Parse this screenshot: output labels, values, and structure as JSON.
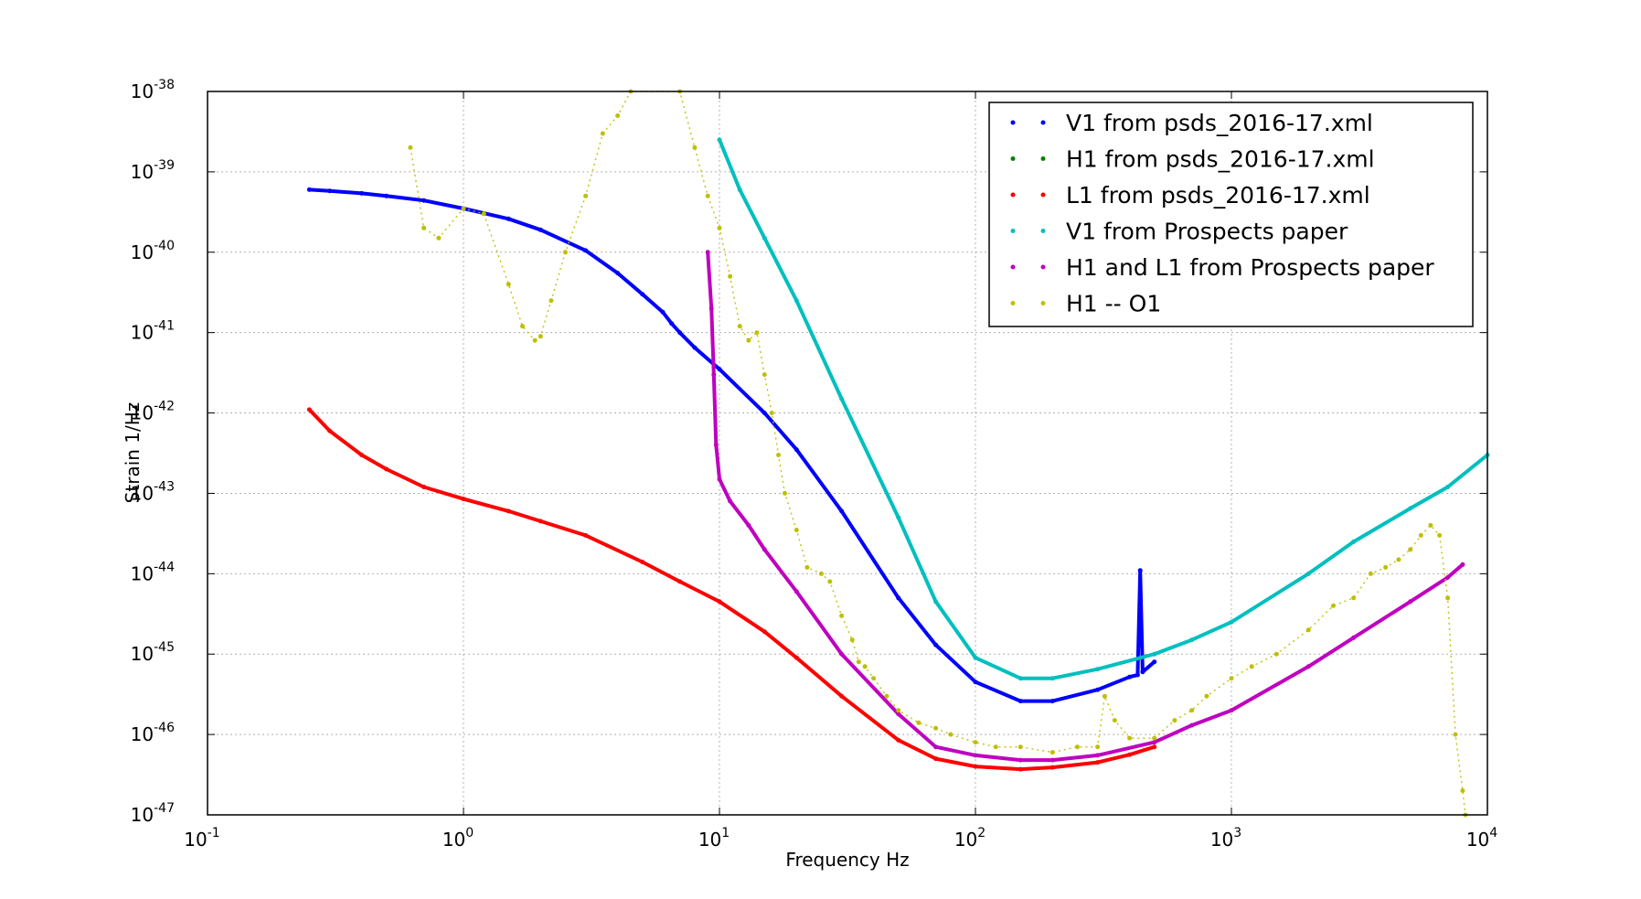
{
  "chart_data": {
    "type": "scatter",
    "title": "",
    "xlabel": "Frequency Hz",
    "ylabel": "Strain 1/Hz",
    "xscale": "log",
    "yscale": "log",
    "xlim": [
      0.1,
      10000
    ],
    "ylim": [
      1e-47,
      1e-38
    ],
    "grid": true,
    "legend_position": "top-right",
    "x_ticks": [
      {
        "value": 0.1,
        "base": "10",
        "exp": "-1"
      },
      {
        "value": 1,
        "base": "10",
        "exp": "0"
      },
      {
        "value": 10,
        "base": "10",
        "exp": "1"
      },
      {
        "value": 100,
        "base": "10",
        "exp": "2"
      },
      {
        "value": 1000,
        "base": "10",
        "exp": "3"
      },
      {
        "value": 10000,
        "base": "10",
        "exp": "4"
      }
    ],
    "y_ticks": [
      {
        "value": 1e-38,
        "base": "10",
        "exp": "-38"
      },
      {
        "value": 1e-39,
        "base": "10",
        "exp": "-39"
      },
      {
        "value": 1e-40,
        "base": "10",
        "exp": "-40"
      },
      {
        "value": 1e-41,
        "base": "10",
        "exp": "-41"
      },
      {
        "value": 1e-42,
        "base": "10",
        "exp": "-42"
      },
      {
        "value": 1e-43,
        "base": "10",
        "exp": "-43"
      },
      {
        "value": 1e-44,
        "base": "10",
        "exp": "-44"
      },
      {
        "value": 1e-45,
        "base": "10",
        "exp": "-45"
      },
      {
        "value": 1e-46,
        "base": "10",
        "exp": "-46"
      },
      {
        "value": 1e-47,
        "base": "10",
        "exp": "-47"
      }
    ],
    "series": [
      {
        "name": "V1 from psds_2016-17.xml",
        "color": "#0000ff",
        "x": [
          0.25,
          0.3,
          0.4,
          0.5,
          0.7,
          1,
          1.5,
          2,
          3,
          4,
          5,
          6,
          6.5,
          7,
          8,
          10,
          15,
          20,
          30,
          50,
          70,
          100,
          150,
          200,
          300,
          400,
          430,
          440,
          450,
          500
        ],
        "y": [
          6e-40,
          5.8e-40,
          5.4e-40,
          5e-40,
          4.4e-40,
          3.5e-40,
          2.6e-40,
          1.9e-40,
          1.05e-40,
          5.5e-41,
          3e-41,
          1.8e-41,
          1.3e-41,
          1e-41,
          6.5e-42,
          3.5e-42,
          1e-42,
          3.5e-43,
          6e-44,
          5e-45,
          1.3e-45,
          4.5e-46,
          2.6e-46,
          2.6e-46,
          3.6e-46,
          5.2e-46,
          5.5e-46,
          1.1e-44,
          6e-46,
          8e-46
        ]
      },
      {
        "name": "H1 from psds_2016-17.xml",
        "color": "#008000",
        "x": [],
        "y": []
      },
      {
        "name": "L1 from psds_2016-17.xml",
        "color": "#ff0000",
        "x": [
          0.25,
          0.3,
          0.4,
          0.5,
          0.7,
          1,
          1.5,
          2,
          3,
          5,
          7,
          10,
          15,
          20,
          30,
          50,
          70,
          100,
          150,
          200,
          300,
          400,
          500
        ],
        "y": [
          1.1e-42,
          6e-43,
          3e-43,
          2e-43,
          1.2e-43,
          8.5e-44,
          6e-44,
          4.5e-44,
          3e-44,
          1.4e-44,
          8e-45,
          4.5e-45,
          1.9e-45,
          9e-46,
          3e-46,
          8.5e-47,
          5e-47,
          4e-47,
          3.7e-47,
          3.9e-47,
          4.5e-47,
          5.6e-47,
          7e-47
        ]
      },
      {
        "name": "V1 from Prospects paper",
        "color": "#00bfbf",
        "x": [
          10,
          12,
          15,
          20,
          30,
          50,
          70,
          100,
          150,
          200,
          300,
          500,
          700,
          1000,
          2000,
          3000,
          5000,
          7000,
          10000
        ],
        "y": [
          2.5e-39,
          6e-40,
          1.5e-40,
          2.5e-41,
          1.5e-42,
          5e-44,
          4.5e-45,
          9e-46,
          5e-46,
          5e-46,
          6.5e-46,
          1e-45,
          1.5e-45,
          2.5e-45,
          1e-44,
          2.5e-44,
          6.5e-44,
          1.2e-43,
          3e-43
        ]
      },
      {
        "name": "H1 and L1 from Prospects paper",
        "color": "#bf00bf",
        "x": [
          9,
          9.3,
          9.5,
          9.7,
          10,
          11,
          13,
          15,
          20,
          30,
          50,
          70,
          100,
          150,
          200,
          300,
          500,
          700,
          1000,
          2000,
          3000,
          5000,
          7000,
          8000
        ],
        "y": [
          1e-40,
          2e-41,
          3e-42,
          4e-43,
          1.5e-43,
          8e-44,
          4e-44,
          2e-44,
          6e-45,
          1e-45,
          1.8e-46,
          7e-47,
          5.5e-47,
          4.8e-47,
          4.8e-47,
          5.5e-47,
          8e-47,
          1.3e-46,
          2e-46,
          7e-46,
          1.6e-45,
          4.5e-45,
          9e-45,
          1.3e-44
        ]
      },
      {
        "name": "H1 -- O1",
        "color": "#bfbf00",
        "x": [
          0.62,
          0.7,
          0.8,
          1,
          1.2,
          1.5,
          1.7,
          1.9,
          2,
          2.2,
          2.5,
          3,
          3.5,
          4,
          4.5,
          7,
          8,
          9,
          10,
          11,
          12,
          13,
          14,
          15,
          16,
          17,
          18,
          20,
          22,
          25,
          27,
          30,
          33,
          35,
          37,
          40,
          45,
          50,
          60,
          70,
          80,
          100,
          120,
          150,
          200,
          250,
          300,
          320,
          350,
          400,
          500,
          600,
          700,
          800,
          1000,
          1200,
          1500,
          2000,
          2500,
          3000,
          3500,
          4000,
          4500,
          5000,
          5500,
          6000,
          6500,
          7000,
          7500,
          8000,
          8200
        ],
        "y": [
          2e-39,
          2e-40,
          1.5e-40,
          3.5e-40,
          3e-40,
          4e-41,
          1.2e-41,
          8e-42,
          9e-42,
          2.5e-41,
          1e-40,
          5e-40,
          3e-39,
          5e-39,
          1e-38,
          1e-38,
          2e-39,
          5e-40,
          2e-40,
          5e-41,
          1.2e-41,
          8e-42,
          1e-41,
          3e-42,
          1e-42,
          3e-43,
          1e-43,
          3.5e-44,
          1.2e-44,
          1e-44,
          8e-45,
          3e-45,
          1.5e-45,
          8e-46,
          7e-46,
          5e-46,
          3e-46,
          2e-46,
          1.4e-46,
          1.2e-46,
          1e-46,
          8e-47,
          7e-47,
          7e-47,
          6e-47,
          7e-47,
          7e-47,
          3e-46,
          1.5e-46,
          9e-47,
          9e-47,
          1.5e-46,
          2e-46,
          3e-46,
          5e-46,
          7e-46,
          1e-45,
          2e-45,
          4e-45,
          5e-45,
          1e-44,
          1.2e-44,
          1.5e-44,
          2e-44,
          3e-44,
          4e-44,
          3e-44,
          5e-45,
          1e-46,
          2e-47,
          1e-47
        ]
      }
    ]
  }
}
